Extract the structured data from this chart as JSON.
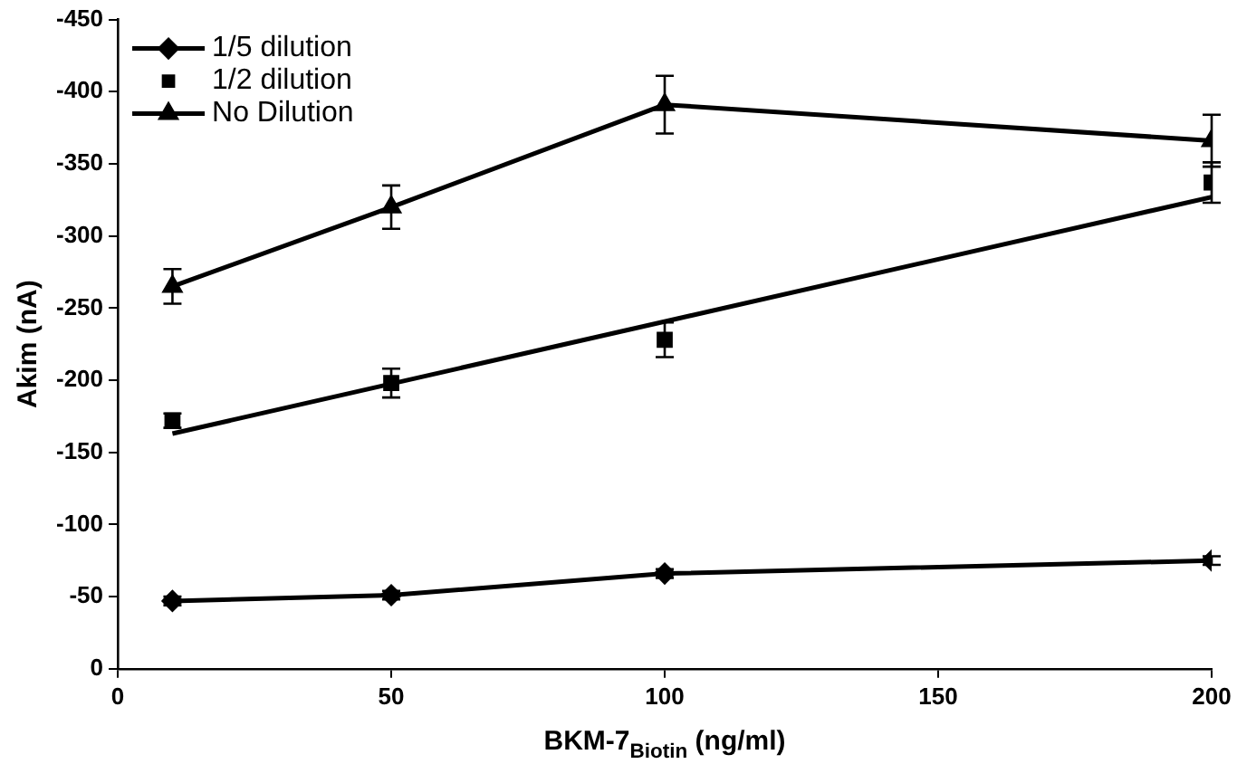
{
  "chart_data": {
    "type": "line",
    "xlabel": "BKM-7$_{Biotin}$ (ng/ml)",
    "ylabel": "Akim (nA)",
    "x": [
      10,
      50,
      100,
      200
    ],
    "xlim": [
      0,
      200
    ],
    "xticks": [
      0,
      50,
      100,
      150,
      200
    ],
    "ylim": [
      0,
      -450
    ],
    "yticks": [
      0,
      -50,
      -100,
      -150,
      -200,
      -250,
      -300,
      -350,
      -400,
      -450
    ],
    "grid": false,
    "legend": "top left",
    "line_style": "solid",
    "series": [
      {
        "name": "1/5 dilution",
        "color": "#000000",
        "marker": "diamond",
        "values": [
          -47,
          -51,
          -66,
          -75
        ],
        "errors": [
          3,
          3,
          3,
          3
        ]
      },
      {
        "name": "1/2 dilution",
        "type": "scatter",
        "color": "#000000",
        "marker": "square",
        "values": [
          -172,
          -198,
          -228,
          -337
        ],
        "errors": [
          5,
          10,
          12,
          14
        ]
      },
      {
        "name": "No Dilution",
        "color": "#000000",
        "marker": "triangle",
        "values": [
          -265,
          -320,
          -391,
          -366
        ],
        "errors": [
          12,
          15,
          20,
          18
        ]
      },
      {
        "type": "line",
        "color": "#000000",
        "marker": "none",
        "x": [
          10,
          200
        ],
        "values": [
          -163,
          -327
        ]
      }
    ]
  }
}
